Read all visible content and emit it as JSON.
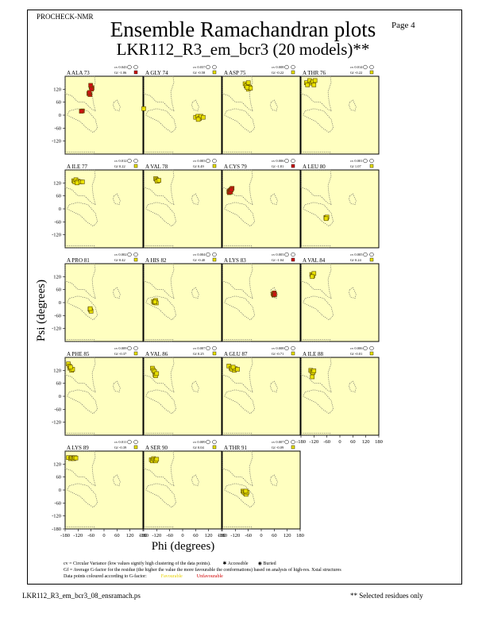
{
  "header": {
    "program": "PROCHECK-NMR",
    "page": "Page  4",
    "title": "Ensemble Ramachandran plots",
    "subtitle": "LKR112_R3_em_bcr3 (20 models)**"
  },
  "colors": {
    "panel_bg": "#ffffc0",
    "region_outline": "#555555",
    "favourable": "#e8e000",
    "unfavourable": "#cc1111",
    "point_border": "#5a4a00"
  },
  "chart_data": {
    "type": "scatter",
    "xlabel": "Phi (degrees)",
    "ylabel": "Psi (degrees)",
    "xlim": [
      -180,
      180
    ],
    "ylim": [
      -180,
      180
    ],
    "x_ticks": [
      "-180",
      "-120",
      "-60",
      "0",
      "60",
      "120",
      "180"
    ],
    "y_ticks": [
      "120",
      "60",
      "0",
      "-60",
      "-120",
      "-180"
    ],
    "panels": [
      {
        "label": "A ALA 73",
        "cv": "cv 0.043",
        "gf": "Gf -1.06",
        "gf_color": "unfavourable",
        "points": [
          [
            -60,
            130
          ],
          [
            -55,
            125
          ],
          [
            -62,
            138
          ],
          [
            -58,
            120
          ],
          [
            -70,
            100
          ],
          [
            -65,
            95
          ],
          [
            -68,
            105
          ],
          [
            -100,
            20
          ],
          [
            -105,
            18
          ]
        ]
      },
      {
        "label": "A GLY 74",
        "cv": "cv 0.037",
        "gf": "Gf -0.58",
        "gf_color": "favourable",
        "points": [
          [
            -180,
            30
          ],
          [
            60,
            -10
          ],
          [
            70,
            -5
          ],
          [
            78,
            -15
          ],
          [
            85,
            -5
          ],
          [
            72,
            -20
          ],
          [
            95,
            -10
          ]
        ]
      },
      {
        "label": "A ASP 75",
        "cv": "cv 0.008",
        "gf": "Gf -0.22",
        "gf_color": "favourable",
        "points": [
          [
            -75,
            145
          ],
          [
            -65,
            140
          ],
          [
            -70,
            135
          ],
          [
            -60,
            150
          ],
          [
            -55,
            130
          ],
          [
            -60,
            120
          ],
          [
            -50,
            125
          ],
          [
            -65,
            128
          ]
        ]
      },
      {
        "label": "A THR 76",
        "cv": "cv 0.014",
        "gf": "Gf -0.22",
        "gf_color": "favourable",
        "points": [
          [
            -155,
            150
          ],
          [
            -140,
            160
          ],
          [
            -130,
            148
          ],
          [
            -125,
            155
          ],
          [
            -120,
            140
          ],
          [
            -115,
            160
          ],
          [
            -150,
            140
          ]
        ]
      },
      {
        "label": "A ILE 77",
        "cv": "cv 0.012",
        "gf": "Gf 0.22",
        "gf_color": "favourable",
        "points": [
          [
            -140,
            130
          ],
          [
            -135,
            125
          ],
          [
            -130,
            135
          ],
          [
            -120,
            128
          ],
          [
            -110,
            125
          ],
          [
            -100,
            125
          ],
          [
            -125,
            120
          ]
        ]
      },
      {
        "label": "A VAL 78",
        "cv": "cv 0.003",
        "gf": "Gf 0.49",
        "gf_color": "favourable",
        "points": [
          [
            -125,
            140
          ],
          [
            -120,
            135
          ],
          [
            -115,
            130
          ],
          [
            -118,
            128
          ],
          [
            -110,
            132
          ]
        ]
      },
      {
        "label": "A CYS 79",
        "cv": "cv 0.006",
        "gf": "Gf -1.81",
        "gf_color": "unfavourable",
        "points": [
          [
            -150,
            80
          ],
          [
            -145,
            85
          ],
          [
            -140,
            90
          ],
          [
            -135,
            95
          ],
          [
            -148,
            75
          ],
          [
            -142,
            78
          ],
          [
            -138,
            88
          ]
        ]
      },
      {
        "label": "A LEU 80",
        "cv": "cv 0.001",
        "gf": "Gf 1.07",
        "gf_color": "favourable",
        "points": [
          [
            -65,
            -40
          ],
          [
            -62,
            -42
          ],
          [
            -60,
            -38
          ],
          [
            -64,
            -45
          ]
        ]
      },
      {
        "label": "A PRO 81",
        "cv": "cv 0.002",
        "gf": "Gf 0.42",
        "gf_color": "favourable",
        "points": [
          [
            -65,
            -30
          ],
          [
            -62,
            -35
          ],
          [
            -60,
            -40
          ],
          [
            -64,
            -28
          ]
        ]
      },
      {
        "label": "A HIS 82",
        "cv": "cv 0.004",
        "gf": "Gf -0.40",
        "gf_color": "favourable",
        "points": [
          [
            -135,
            5
          ],
          [
            -130,
            0
          ],
          [
            -125,
            10
          ],
          [
            -122,
            -2
          ],
          [
            -128,
            3
          ]
        ]
      },
      {
        "label": "A LYS 83",
        "cv": "cv 0.003",
        "gf": "Gf -1.04",
        "gf_color": "unfavourable",
        "points": [
          [
            55,
            40
          ],
          [
            58,
            35
          ],
          [
            60,
            45
          ],
          [
            62,
            38
          ]
        ]
      },
      {
        "label": "A VAL 84",
        "cv": "cv 0.005",
        "gf": "Gf 0.24",
        "gf_color": "favourable",
        "points": [
          [
            -130,
            130
          ],
          [
            -125,
            125
          ],
          [
            -120,
            135
          ],
          [
            -128,
            120
          ]
        ]
      },
      {
        "label": "A PHE 85",
        "cv": "cv 0.009",
        "gf": "Gf -0.37",
        "gf_color": "favourable",
        "points": [
          [
            -165,
            150
          ],
          [
            -160,
            140
          ],
          [
            -158,
            130
          ],
          [
            -150,
            120
          ],
          [
            -145,
            125
          ],
          [
            -155,
            135
          ]
        ]
      },
      {
        "label": "A VAL 86",
        "cv": "cv 0.007",
        "gf": "Gf 0.25",
        "gf_color": "favourable",
        "points": [
          [
            -140,
            130
          ],
          [
            -135,
            120
          ],
          [
            -130,
            115
          ],
          [
            -128,
            100
          ],
          [
            -125,
            95
          ],
          [
            -120,
            105
          ]
        ]
      },
      {
        "label": "A GLU 87",
        "cv": "cv 0.008",
        "gf": "Gf -0.71",
        "gf_color": "favourable",
        "points": [
          [
            -150,
            140
          ],
          [
            -140,
            130
          ],
          [
            -135,
            125
          ],
          [
            -125,
            120
          ],
          [
            -120,
            128
          ],
          [
            -110,
            125
          ],
          [
            -130,
            135
          ]
        ]
      },
      {
        "label": "A ILE 88",
        "cv": "cv 0.006",
        "gf": "Gf -0.01",
        "gf_color": "favourable",
        "points": [
          [
            -135,
            120
          ],
          [
            -130,
            115
          ],
          [
            -125,
            110
          ],
          [
            -128,
            90
          ],
          [
            -120,
            118
          ]
        ]
      },
      {
        "label": "A LYS 89",
        "cv": "cv 0.011",
        "gf": "Gf -0.39",
        "gf_color": "favourable",
        "points": [
          [
            -165,
            150
          ],
          [
            -155,
            145
          ],
          [
            -150,
            150
          ],
          [
            -145,
            148
          ],
          [
            -140,
            145
          ],
          [
            -135,
            150
          ],
          [
            -130,
            148
          ]
        ]
      },
      {
        "label": "A SER 90",
        "cv": "cv 0.009",
        "gf": "Gf 0.04",
        "gf_color": "favourable",
        "points": [
          [
            -145,
            140
          ],
          [
            -140,
            135
          ],
          [
            -135,
            145
          ],
          [
            -130,
            140
          ],
          [
            -125,
            135
          ],
          [
            -120,
            142
          ]
        ]
      },
      {
        "label": "A THR 91",
        "cv": "cv 0.007",
        "gf": "Gf -0.09",
        "gf_color": "favourable",
        "points": [
          [
            -85,
            -5
          ],
          [
            -80,
            -10
          ],
          [
            -75,
            -15
          ],
          [
            -70,
            -20
          ],
          [
            -65,
            -10
          ],
          [
            -72,
            -5
          ]
        ]
      }
    ]
  },
  "legend": {
    "line1_a": "cv = Circular Variance (low values signify high clustering of the data points).",
    "accessible": "Accessible",
    "buried": "Buried",
    "line2": "Gf = Average G-factor for the residue (the higher the value the more favourable the conformations) based on analysis of high-res. Xstal structures",
    "line3": "Data points coloured according to G-factor:",
    "favourable": "Favourable",
    "unfavourable": "Unfavourable"
  },
  "footer": {
    "filename": "LKR112_R3_em_bcr3_08_ensramach.ps",
    "note": "** Selected residues only"
  }
}
